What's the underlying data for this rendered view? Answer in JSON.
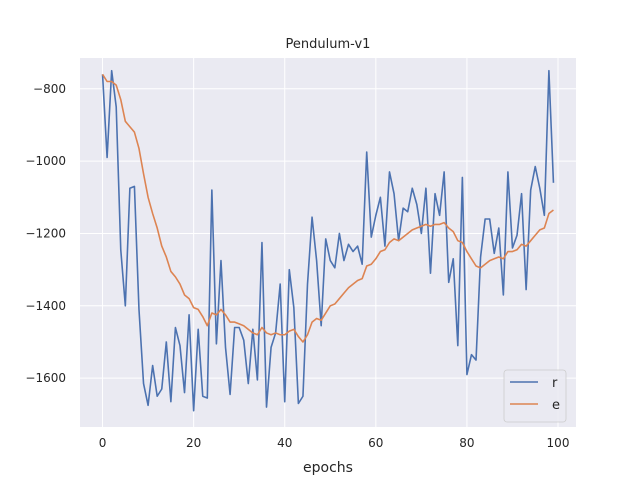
{
  "chart_data": {
    "type": "line",
    "title": "Pendulum-v1",
    "xlabel": "epochs",
    "ylabel": "",
    "xlim": [
      -4.95,
      103.95
    ],
    "ylim": [
      -1735,
      -715
    ],
    "xticks": [
      0,
      20,
      40,
      60,
      80,
      100
    ],
    "yticks": [
      -1600,
      -1400,
      -1200,
      -1000,
      -800
    ],
    "xtick_labels": [
      "0",
      "20",
      "40",
      "60",
      "80",
      "100"
    ],
    "ytick_labels": [
      "−1600",
      "−1400",
      "−1200",
      "−1000",
      "−800"
    ],
    "grid": true,
    "legend_position": "lower-right",
    "colors": {
      "r": "#4c72b0",
      "e": "#dd8452",
      "background": "#eaeaf2",
      "grid": "#ffffff"
    },
    "series": [
      {
        "name": "r",
        "color": "#4c72b0",
        "x": [
          0,
          1,
          2,
          3,
          4,
          5,
          6,
          7,
          8,
          9,
          10,
          11,
          12,
          13,
          14,
          15,
          16,
          17,
          18,
          19,
          20,
          21,
          22,
          23,
          24,
          25,
          26,
          27,
          28,
          29,
          30,
          31,
          32,
          33,
          34,
          35,
          36,
          37,
          38,
          39,
          40,
          41,
          42,
          43,
          44,
          45,
          46,
          47,
          48,
          49,
          50,
          51,
          52,
          53,
          54,
          55,
          56,
          57,
          58,
          59,
          60,
          61,
          62,
          63,
          64,
          65,
          66,
          67,
          68,
          69,
          70,
          71,
          72,
          73,
          74,
          75,
          76,
          77,
          78,
          79,
          80,
          81,
          82,
          83,
          84,
          85,
          86,
          87,
          88,
          89,
          90,
          91,
          92,
          93,
          94,
          95,
          96,
          97,
          98,
          99
        ],
        "values": [
          -760,
          -990,
          -750,
          -850,
          -1245,
          -1400,
          -1075,
          -1070,
          -1410,
          -1615,
          -1675,
          -1565,
          -1650,
          -1630,
          -1500,
          -1665,
          -1460,
          -1510,
          -1640,
          -1425,
          -1690,
          -1465,
          -1650,
          -1655,
          -1080,
          -1505,
          -1275,
          -1515,
          -1645,
          -1460,
          -1460,
          -1495,
          -1615,
          -1465,
          -1605,
          -1225,
          -1680,
          -1515,
          -1475,
          -1340,
          -1665,
          -1300,
          -1405,
          -1670,
          -1650,
          -1340,
          -1155,
          -1275,
          -1455,
          -1215,
          -1275,
          -1295,
          -1200,
          -1275,
          -1230,
          -1250,
          -1235,
          -1285,
          -975,
          -1210,
          -1150,
          -1100,
          -1235,
          -1030,
          -1090,
          -1220,
          -1130,
          -1140,
          -1075,
          -1120,
          -1200,
          -1075,
          -1310,
          -1090,
          -1150,
          -1030,
          -1335,
          -1270,
          -1510,
          -1045,
          -1590,
          -1535,
          -1550,
          -1265,
          -1160,
          -1160,
          -1255,
          -1185,
          -1370,
          -1030,
          -1240,
          -1205,
          -1090,
          -1355,
          -1080,
          -1015,
          -1075,
          -1150,
          -750,
          -1060
        ]
      },
      {
        "name": "e",
        "color": "#dd8452",
        "x": [
          0,
          1,
          2,
          3,
          4,
          5,
          6,
          7,
          8,
          9,
          10,
          11,
          12,
          13,
          14,
          15,
          16,
          17,
          18,
          19,
          20,
          21,
          22,
          23,
          24,
          25,
          26,
          27,
          28,
          29,
          30,
          31,
          32,
          33,
          34,
          35,
          36,
          37,
          38,
          39,
          40,
          41,
          42,
          43,
          44,
          45,
          46,
          47,
          48,
          49,
          50,
          51,
          52,
          53,
          54,
          55,
          56,
          57,
          58,
          59,
          60,
          61,
          62,
          63,
          64,
          65,
          66,
          67,
          68,
          69,
          70,
          71,
          72,
          73,
          74,
          75,
          76,
          77,
          78,
          79,
          80,
          81,
          82,
          83,
          84,
          85,
          86,
          87,
          88,
          89,
          90,
          91,
          92,
          93,
          94,
          95,
          96,
          97,
          98,
          99
        ],
        "values": [
          -760,
          -780,
          -780,
          -790,
          -830,
          -890,
          -905,
          -920,
          -965,
          -1035,
          -1100,
          -1145,
          -1185,
          -1235,
          -1265,
          -1305,
          -1320,
          -1340,
          -1370,
          -1380,
          -1405,
          -1410,
          -1430,
          -1455,
          -1420,
          -1425,
          -1410,
          -1425,
          -1445,
          -1445,
          -1450,
          -1455,
          -1465,
          -1475,
          -1480,
          -1460,
          -1475,
          -1480,
          -1475,
          -1480,
          -1480,
          -1470,
          -1465,
          -1485,
          -1500,
          -1480,
          -1445,
          -1435,
          -1440,
          -1420,
          -1400,
          -1395,
          -1380,
          -1365,
          -1350,
          -1340,
          -1330,
          -1325,
          -1290,
          -1285,
          -1270,
          -1250,
          -1245,
          -1225,
          -1215,
          -1220,
          -1210,
          -1200,
          -1190,
          -1185,
          -1180,
          -1175,
          -1180,
          -1175,
          -1175,
          -1170,
          -1185,
          -1195,
          -1220,
          -1225,
          -1250,
          -1270,
          -1290,
          -1295,
          -1285,
          -1275,
          -1270,
          -1265,
          -1270,
          -1250,
          -1250,
          -1245,
          -1230,
          -1235,
          -1220,
          -1205,
          -1190,
          -1185,
          -1145,
          -1135
        ]
      }
    ]
  }
}
